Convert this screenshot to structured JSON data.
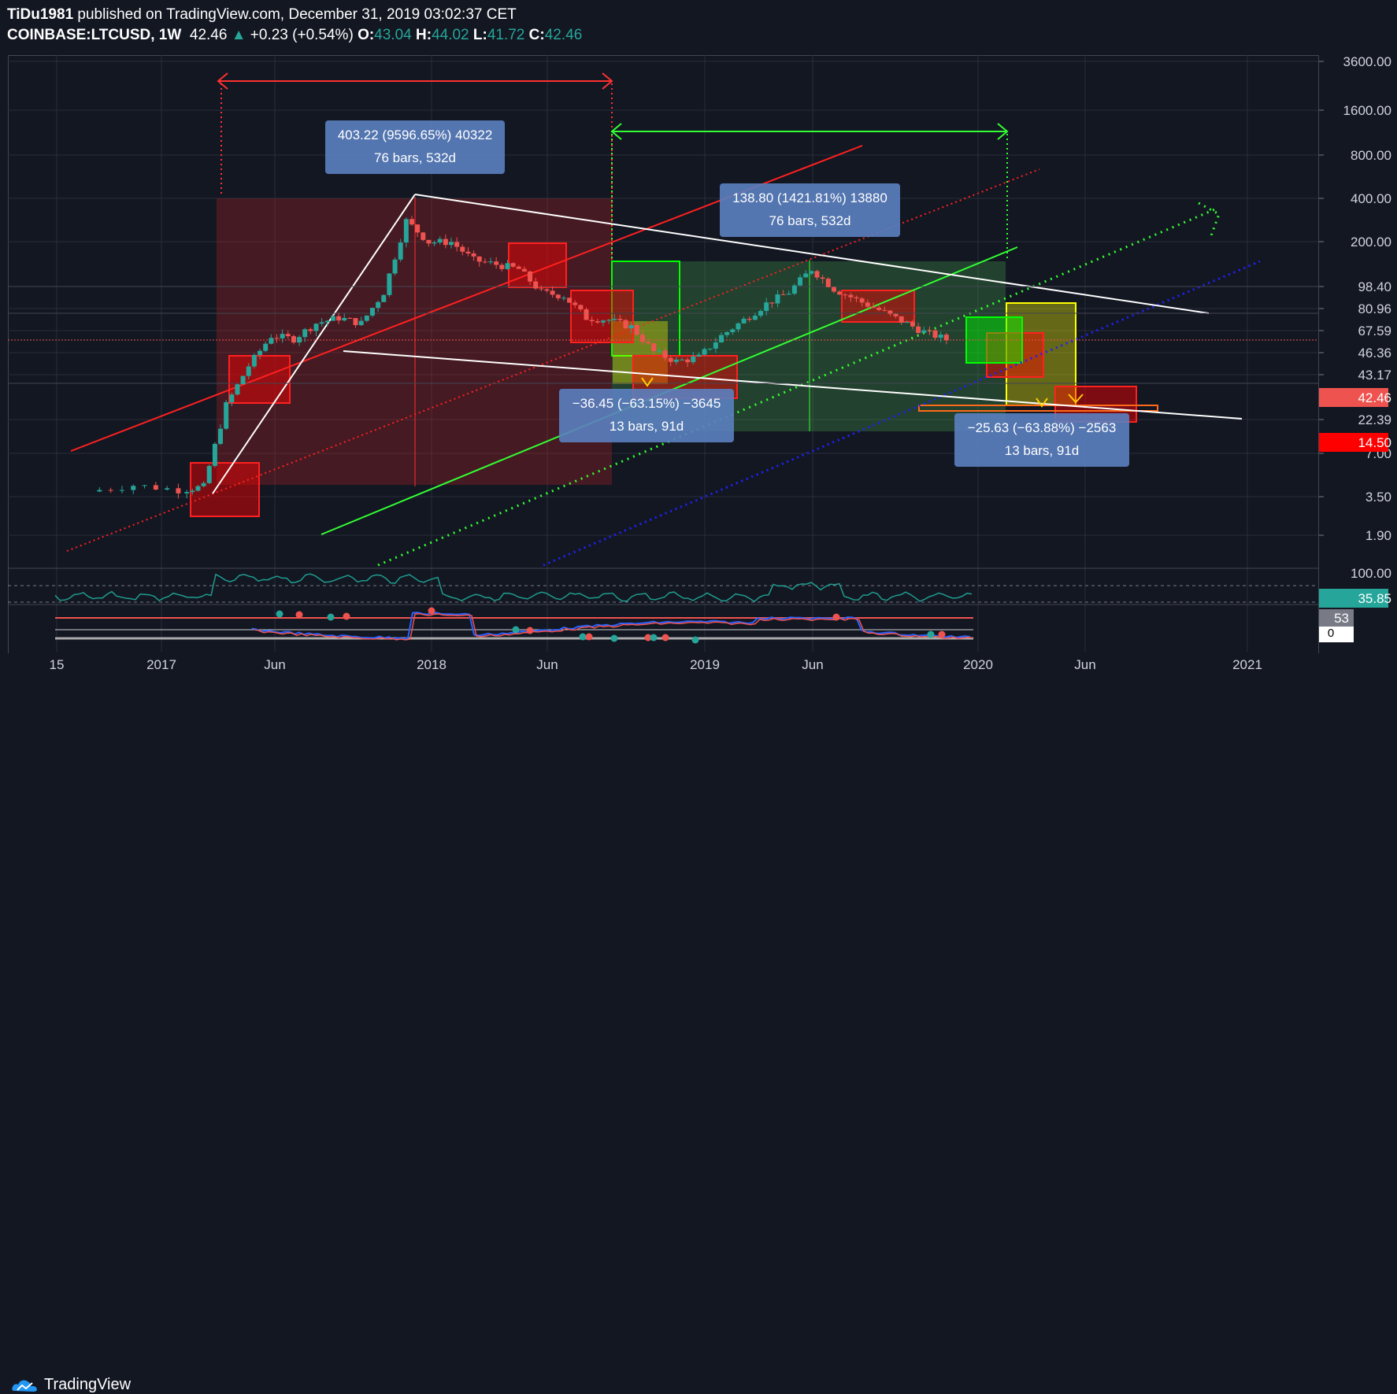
{
  "header": {
    "author": "TiDu1981",
    "published_text": " published on TradingView.com, December 31, 2019 03:02:37 CET",
    "symbol": "COINBASE:LTCUSD, 1W",
    "last": "42.46",
    "change": "+0.23 (+0.54%)",
    "o_label": "O:",
    "o_value": "43.04",
    "h_label": "H:",
    "h_value": "44.02",
    "l_label": "L:",
    "l_value": "41.72",
    "c_label": "C:",
    "c_value": "42.46"
  },
  "footer": {
    "brand": "TradingView"
  },
  "colors": {
    "bg": "#131722",
    "up": "#26a69a",
    "down": "#ef5350",
    "price_tag": "#ef5350",
    "stop_tag": "#ff0000",
    "rsi_tag": "#26a69a"
  },
  "chart_data": {
    "type": "candlestick",
    "y_scale": "log",
    "y_ticks": [
      "3600.00",
      "1600.00",
      "800.00",
      "400.00",
      "200.00",
      "98.40",
      "80.96",
      "67.59",
      "46.36",
      "43.17",
      "22.39",
      "7.00",
      "3.50",
      "1.90"
    ],
    "x_ticks": [
      "15",
      "2017",
      "Jun",
      "2018",
      "Jun",
      "2019",
      "Jun",
      "2020",
      "Jun",
      "2021"
    ],
    "price_tags": [
      {
        "value": "42.46",
        "role": "last-price"
      },
      {
        "value": "14.50",
        "role": "level"
      }
    ],
    "series_close_approx": [
      {
        "date": "2016-10",
        "close": 3.8
      },
      {
        "date": "2016-12",
        "close": 4.2
      },
      {
        "date": "2017-02",
        "close": 3.9
      },
      {
        "date": "2017-03",
        "close": 4.1
      },
      {
        "date": "2017-04",
        "close": 15
      },
      {
        "date": "2017-05",
        "close": 28
      },
      {
        "date": "2017-06",
        "close": 45
      },
      {
        "date": "2017-07",
        "close": 43
      },
      {
        "date": "2017-08",
        "close": 55
      },
      {
        "date": "2017-09",
        "close": 60
      },
      {
        "date": "2017-10",
        "close": 55
      },
      {
        "date": "2017-11",
        "close": 90
      },
      {
        "date": "2017-12",
        "close": 280
      },
      {
        "date": "2018-01",
        "close": 200
      },
      {
        "date": "2018-02",
        "close": 200
      },
      {
        "date": "2018-03",
        "close": 150
      },
      {
        "date": "2018-04",
        "close": 140
      },
      {
        "date": "2018-05",
        "close": 130
      },
      {
        "date": "2018-06",
        "close": 90
      },
      {
        "date": "2018-07",
        "close": 85
      },
      {
        "date": "2018-08",
        "close": 60
      },
      {
        "date": "2018-09",
        "close": 58
      },
      {
        "date": "2018-10",
        "close": 52
      },
      {
        "date": "2018-11",
        "close": 35
      },
      {
        "date": "2018-12",
        "close": 30
      },
      {
        "date": "2019-01",
        "close": 32
      },
      {
        "date": "2019-02",
        "close": 45
      },
      {
        "date": "2019-03",
        "close": 58
      },
      {
        "date": "2019-04",
        "close": 75
      },
      {
        "date": "2019-05",
        "close": 90
      },
      {
        "date": "2019-06",
        "close": 130
      },
      {
        "date": "2019-07",
        "close": 95
      },
      {
        "date": "2019-08",
        "close": 80
      },
      {
        "date": "2019-09",
        "close": 68
      },
      {
        "date": "2019-10",
        "close": 57
      },
      {
        "date": "2019-11",
        "close": 48
      },
      {
        "date": "2019-12",
        "close": 42.46
      }
    ],
    "measurements": [
      {
        "line1": "403.22 (9596.65%) 40322",
        "line2": "76 bars, 532d"
      },
      {
        "line1": "138.80 (1421.81%) 13880",
        "line2": "76 bars, 532d"
      },
      {
        "line1": "−36.45 (−63.15%) −3645",
        "line2": "13 bars, 91d"
      },
      {
        "line1": "−25.63 (−63.88%) −2563",
        "line2": "13 bars, 91d"
      }
    ],
    "rsi": {
      "ticks": [
        "100.00"
      ],
      "value": "35.85"
    },
    "oscillator": {
      "values": [
        "53",
        "0"
      ]
    }
  }
}
